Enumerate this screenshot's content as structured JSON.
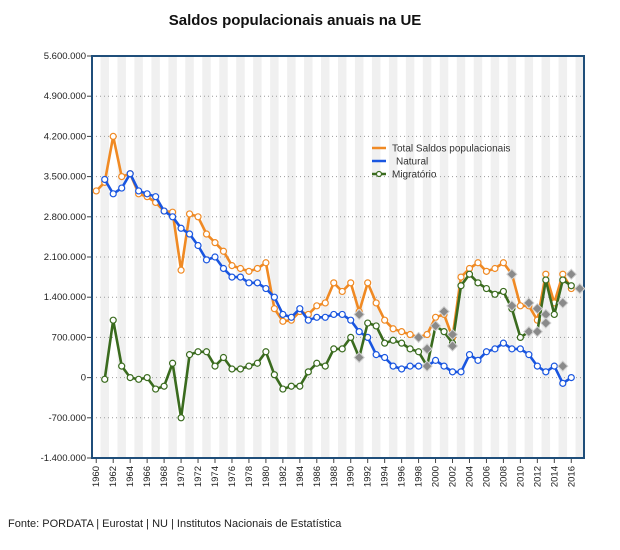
{
  "chart_data": {
    "type": "line",
    "title": "Saldos populacionais anuais na UE",
    "xlabel": "",
    "ylabel": "",
    "ylim": [
      -1400000,
      5600000
    ],
    "yticks": [
      "5.600.000",
      "4.900.000",
      "4.200.000",
      "3.500.000",
      "2.800.000",
      "2.100.000",
      "1.400.000",
      "700.000",
      "0",
      "-700.000",
      "-1.400.000"
    ],
    "xticks": [
      "1960",
      "1962",
      "1964",
      "1966",
      "1968",
      "1970",
      "1972",
      "1974",
      "1976",
      "1978",
      "1980",
      "1982",
      "1984",
      "1986",
      "1988",
      "1990",
      "1992",
      "1994",
      "1996",
      "1998",
      "2000",
      "2002",
      "2004",
      "2006",
      "2008",
      "2010",
      "2012",
      "2014",
      "2016"
    ],
    "x": [
      1960,
      1961,
      1962,
      1963,
      1964,
      1965,
      1966,
      1967,
      1968,
      1969,
      1970,
      1971,
      1972,
      1973,
      1974,
      1975,
      1976,
      1977,
      1978,
      1979,
      1980,
      1981,
      1982,
      1983,
      1984,
      1985,
      1986,
      1987,
      1988,
      1989,
      1990,
      1991,
      1992,
      1993,
      1994,
      1995,
      1996,
      1997,
      1998,
      1999,
      2000,
      2001,
      2002,
      2003,
      2004,
      2005,
      2006,
      2007,
      2008,
      2009,
      2010,
      2011,
      2012,
      2013,
      2014,
      2015,
      2016,
      2017
    ],
    "legend_position": "top-right",
    "grid": true,
    "series": [
      {
        "name": "Total Saldos populacionais",
        "color": "#f08a24",
        "values": [
          3250000,
          3400000,
          4200000,
          3500000,
          3550000,
          3200000,
          3150000,
          3050000,
          2900000,
          2880000,
          1870000,
          2850000,
          2800000,
          2500000,
          2350000,
          2200000,
          1950000,
          1900000,
          1850000,
          1900000,
          2000000,
          1200000,
          980000,
          1000000,
          1150000,
          1100000,
          1250000,
          1300000,
          1650000,
          1500000,
          1650000,
          1150000,
          1650000,
          1300000,
          1000000,
          850000,
          800000,
          750000,
          700000,
          750000,
          1050000,
          1100000,
          700000,
          1750000,
          1900000,
          2000000,
          1850000,
          1900000,
          2000000,
          1800000,
          1250000,
          1250000,
          1000000,
          1800000,
          1300000,
          1800000,
          1550000,
          null
        ]
      },
      {
        "name": "Natural",
        "color": "#1a56e0",
        "values": [
          null,
          3450000,
          3200000,
          3300000,
          3550000,
          3250000,
          3200000,
          3150000,
          2900000,
          2800000,
          2600000,
          2500000,
          2300000,
          2050000,
          2100000,
          1900000,
          1750000,
          1750000,
          1650000,
          1650000,
          1550000,
          1400000,
          1100000,
          1050000,
          1200000,
          1000000,
          1050000,
          1050000,
          1100000,
          1100000,
          1000000,
          800000,
          700000,
          400000,
          350000,
          200000,
          150000,
          200000,
          200000,
          200000,
          300000,
          200000,
          100000,
          100000,
          400000,
          300000,
          450000,
          500000,
          600000,
          500000,
          500000,
          400000,
          200000,
          100000,
          200000,
          -100000,
          0,
          null
        ]
      },
      {
        "name": "Migratório",
        "color": "#3a6b1e",
        "values": [
          null,
          -30000,
          1000000,
          200000,
          0,
          -30000,
          0,
          -200000,
          -150000,
          250000,
          -700000,
          400000,
          450000,
          450000,
          200000,
          350000,
          150000,
          150000,
          200000,
          250000,
          450000,
          50000,
          -200000,
          -150000,
          -150000,
          100000,
          250000,
          200000,
          500000,
          500000,
          700000,
          350000,
          950000,
          900000,
          600000,
          650000,
          600000,
          500000,
          450000,
          200000,
          900000,
          800000,
          600000,
          1600000,
          1800000,
          1650000,
          1550000,
          1450000,
          1500000,
          1200000,
          700000,
          800000,
          800000,
          1700000,
          1100000,
          1700000,
          1600000,
          null
        ]
      }
    ],
    "estimated_markers": [
      {
        "x": 1991,
        "y": 350000
      },
      {
        "x": 1991,
        "y": 1100000
      },
      {
        "x": 1998,
        "y": 700000
      },
      {
        "x": 1999,
        "y": 200000
      },
      {
        "x": 1999,
        "y": 500000
      },
      {
        "x": 2000,
        "y": 900000
      },
      {
        "x": 2001,
        "y": 1150000
      },
      {
        "x": 2002,
        "y": 750000
      },
      {
        "x": 2002,
        "y": 550000
      },
      {
        "x": 2009,
        "y": 1800000
      },
      {
        "x": 2009,
        "y": 1250000
      },
      {
        "x": 2011,
        "y": 1300000
      },
      {
        "x": 2011,
        "y": 800000
      },
      {
        "x": 2012,
        "y": 1200000
      },
      {
        "x": 2012,
        "y": 800000
      },
      {
        "x": 2013,
        "y": 1100000
      },
      {
        "x": 2013,
        "y": 950000
      },
      {
        "x": 2015,
        "y": 200000
      },
      {
        "x": 2015,
        "y": 1300000
      },
      {
        "x": 2016,
        "y": 1800000
      },
      {
        "x": 2017,
        "y": 1550000
      }
    ]
  },
  "source": "Fonte: PORDATA | Eurostat | NU | Institutos Nacionais de Estatística"
}
